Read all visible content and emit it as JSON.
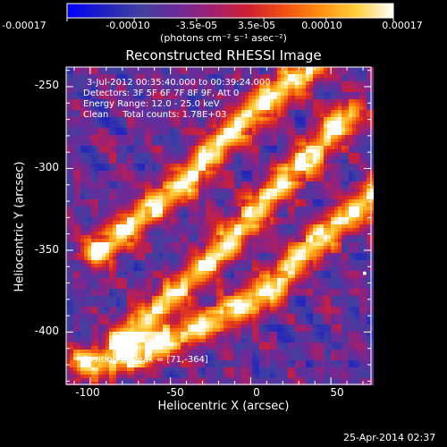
{
  "chart_data": {
    "type": "heatmap",
    "title": "Reconstructed RHESSI Image",
    "xlabel": "Heliocentric X (arcsec)",
    "ylabel": "Heliocentric Y (arcsec)",
    "xlim": [
      -115,
      75
    ],
    "ylim": [
      -432,
      -238
    ],
    "x_ticks": [
      -100,
      -50,
      0,
      50
    ],
    "y_ticks": [
      -250,
      -300,
      -350,
      -400
    ],
    "colorbar": {
      "min": -0.00017,
      "max": 0.00017,
      "tick_values": [
        -0.00017,
        -0.0001,
        -3.5e-05,
        3.5e-05,
        0.0001,
        0.00017
      ],
      "tick_labels": [
        "-0.00017",
        "-0.00010",
        "-3.5e-05",
        "3.5e-05",
        "0.00010",
        "0.00017"
      ],
      "unit": "(photons cm⁻² s⁻¹ asec⁻²)",
      "colors": [
        "#0000ff",
        "#2020c0",
        "#4040a0",
        "#6a2a9a",
        "#a02070",
        "#d02030",
        "#f05010",
        "#ff9010",
        "#ffd040",
        "#ffffff"
      ]
    },
    "annotations": [
      "3-Jul-2012 00:35:40.000 to 00:39:24.000",
      "Detectors: 3F 5F 6F 7F 8F 9F, Att 0",
      "Energy Range: 12.0 - 25.0 keV",
      "Clean     Total counts: 1.78E+03",
      "Position of Peak = [71,-364]"
    ],
    "bright_bands": [
      {
        "name": "band 1",
        "points": [
          [
            -97,
            -352
          ],
          [
            -75,
            -335
          ],
          [
            -55,
            -320
          ],
          [
            -35,
            -303
          ],
          [
            -18,
            -282
          ],
          [
            5,
            -262
          ],
          [
            22,
            -248
          ],
          [
            40,
            -238
          ]
        ]
      },
      {
        "name": "band 2",
        "points": [
          [
            -80,
            -405
          ],
          [
            -60,
            -388
          ],
          [
            -38,
            -368
          ],
          [
            -18,
            -350
          ],
          [
            0,
            -330
          ],
          [
            20,
            -308
          ],
          [
            40,
            -290
          ],
          [
            60,
            -268
          ]
        ]
      },
      {
        "name": "band 3",
        "points": [
          [
            -105,
            -420
          ],
          [
            -85,
            -418
          ],
          [
            -60,
            -410
          ],
          [
            -40,
            -400
          ],
          [
            -20,
            -392
          ],
          [
            5,
            -380
          ],
          [
            20,
            -366
          ],
          [
            40,
            -345
          ],
          [
            60,
            -330
          ],
          [
            75,
            -318
          ]
        ]
      }
    ],
    "peak": {
      "x": 71,
      "y": -364
    }
  },
  "footer": {
    "timestamp": "25-Apr-2014 02:37"
  }
}
